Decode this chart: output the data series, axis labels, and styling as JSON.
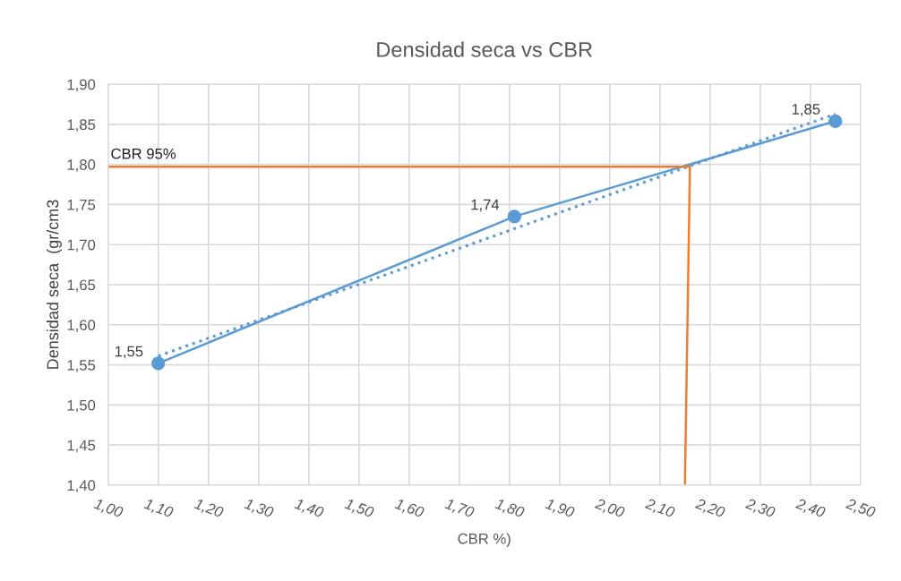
{
  "chart_data": {
    "type": "line",
    "title": "Densidad seca vs CBR",
    "xlabel": "CBR %)",
    "ylabel": "Densidad seca  (gr/cm3",
    "xlim": [
      1.0,
      2.5
    ],
    "xticks": [
      {
        "value": 1.0,
        "label": "1,00"
      },
      {
        "value": 1.1,
        "label": "1,10"
      },
      {
        "value": 1.2,
        "label": "1,20"
      },
      {
        "value": 1.3,
        "label": "1,30"
      },
      {
        "value": 1.4,
        "label": "1,40"
      },
      {
        "value": 1.5,
        "label": "1,50"
      },
      {
        "value": 1.6,
        "label": "1,60"
      },
      {
        "value": 1.7,
        "label": "1,70"
      },
      {
        "value": 1.8,
        "label": "1,80"
      },
      {
        "value": 1.9,
        "label": "1,90"
      },
      {
        "value": 2.0,
        "label": "2,00"
      },
      {
        "value": 2.1,
        "label": "2,10"
      },
      {
        "value": 2.2,
        "label": "2,20"
      },
      {
        "value": 2.3,
        "label": "2,30"
      },
      {
        "value": 2.4,
        "label": "2,40"
      },
      {
        "value": 2.5,
        "label": "2,50"
      }
    ],
    "ylim": [
      1.4,
      1.9
    ],
    "yticks": [
      {
        "value": 1.4,
        "label": "1,40"
      },
      {
        "value": 1.45,
        "label": "1,45"
      },
      {
        "value": 1.5,
        "label": "1,50"
      },
      {
        "value": 1.55,
        "label": "1,55"
      },
      {
        "value": 1.6,
        "label": "1,60"
      },
      {
        "value": 1.65,
        "label": "1,65"
      },
      {
        "value": 1.7,
        "label": "1,70"
      },
      {
        "value": 1.75,
        "label": "1,75"
      },
      {
        "value": 1.8,
        "label": "1,80"
      },
      {
        "value": 1.85,
        "label": "1,85"
      },
      {
        "value": 1.9,
        "label": "1,90"
      }
    ],
    "grid": true,
    "series": [
      {
        "type": "line",
        "color": "#5b9bd5",
        "x": [
          1.1,
          1.81,
          2.45
        ],
        "values": [
          1.552,
          1.735,
          1.854
        ],
        "value_labels": [
          "1,55",
          "1,74",
          "1,85"
        ],
        "marker": "circle",
        "line_style": "solid"
      },
      {
        "type": "line",
        "color": "#5b9bd5",
        "x": [
          1.1,
          2.45
        ],
        "values": [
          1.561,
          1.863
        ],
        "line_style": "dotted"
      },
      {
        "type": "line",
        "color": "#ed7d31",
        "x": [
          1.0,
          2.16,
          2.15
        ],
        "values": [
          1.797,
          1.797,
          1.4
        ],
        "line_style": "solid"
      }
    ],
    "annotations": [
      {
        "text": "CBR 95%",
        "x": 1.0,
        "y": 1.8
      }
    ]
  }
}
